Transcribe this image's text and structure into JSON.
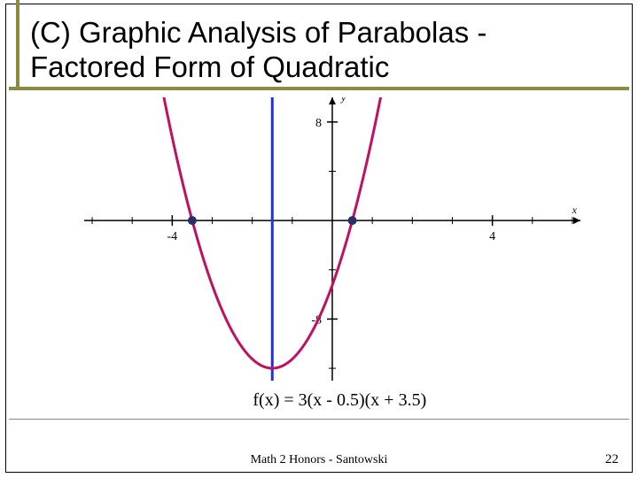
{
  "title_line1": "(C) Graphic Analysis of Parabolas  -",
  "title_line2": " Factored Form of Quadratic",
  "footer": "Math 2 Honors - Santowski",
  "page_number": "22",
  "chart": {
    "type": "line",
    "xlim": [
      -6.2,
      6.2
    ],
    "ylim": [
      -13,
      10
    ],
    "xtick_vals": [
      -4,
      4
    ],
    "xtick_labels": [
      "-4",
      "4"
    ],
    "ytick_vals": [
      -8,
      8
    ],
    "ytick_labels": [
      "-8",
      "8"
    ],
    "x_minor_ticks": [
      -6,
      -5,
      -4,
      -3,
      -2,
      -1,
      1,
      2,
      3,
      4,
      5,
      6
    ],
    "y_minor_ticks": [
      -12,
      -8,
      -4,
      4,
      8
    ],
    "y_axis_label": "y",
    "x_axis_label": "x",
    "axis_color": "#000000",
    "tick_fontsize": 14,
    "axis_label_fontsize": 12,
    "parabola": {
      "a": 3,
      "root1": 0.5,
      "root2": -3.5,
      "color": "#c01060",
      "width": 3
    },
    "vertical_line": {
      "x": -1.5,
      "color": "#2030e0",
      "width": 3
    },
    "markers": {
      "points": [
        [
          -3.5,
          0
        ],
        [
          0.5,
          0
        ]
      ],
      "color": "#2a2f6a",
      "radius": 5
    },
    "equation": "f(x) = 3(x - 0.5)(x + 3.5)",
    "equation_fontsize": 20
  }
}
